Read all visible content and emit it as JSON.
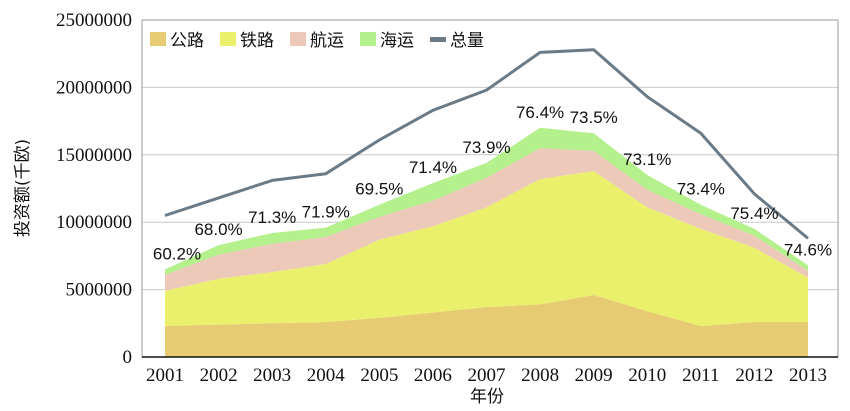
{
  "chart_data": {
    "type": "area",
    "xlabel": "年份",
    "ylabel": "投资额(千欧)",
    "x": [
      "2001",
      "2002",
      "2003",
      "2004",
      "2005",
      "2006",
      "2007",
      "2008",
      "2009",
      "2010",
      "2011",
      "2012",
      "2013"
    ],
    "ylim": [
      0,
      25000000
    ],
    "yticks": [
      "0",
      "5000000",
      "10000000",
      "15000000",
      "20000000",
      "25000000"
    ],
    "grid": true,
    "legend_position": "top-left",
    "stacked_series": [
      {
        "name": "公路",
        "color": "#e6cb72",
        "values": [
          2300000,
          2400000,
          2500000,
          2600000,
          2900000,
          3300000,
          3700000,
          3900000,
          4600000,
          3400000,
          2300000,
          2600000,
          2600000
        ]
      },
      {
        "name": "铁路",
        "color": "#eaf06c",
        "values": [
          2600000,
          3400000,
          3800000,
          4300000,
          5800000,
          6400000,
          7400000,
          9300000,
          9200000,
          7700000,
          7200000,
          5500000,
          3300000
        ]
      },
      {
        "name": "航运",
        "color": "#ecc9b8",
        "values": [
          1200000,
          1800000,
          2100000,
          2000000,
          1700000,
          1900000,
          2200000,
          2300000,
          1500000,
          1300000,
          1100000,
          900000,
          500000
        ]
      },
      {
        "name": "海运",
        "color": "#b4f08c",
        "values": [
          400000,
          700000,
          800000,
          700000,
          900000,
          1300000,
          1100000,
          1500000,
          1300000,
          1100000,
          700000,
          500000,
          400000
        ]
      }
    ],
    "line_series": {
      "name": "总量",
      "color": "#6c7a86",
      "values": [
        10500000,
        11800000,
        13100000,
        13600000,
        16100000,
        18300000,
        19800000,
        22600000,
        22800000,
        19300000,
        16600000,
        12100000,
        8800000
      ]
    },
    "annotations": [
      "60.2%",
      "68.0%",
      "71.3%",
      "71.9%",
      "69.5%",
      "71.4%",
      "73.9%",
      "76.4%",
      "73.5%",
      "73.1%",
      "73.4%",
      "75.4%",
      "74.6%"
    ],
    "legend": [
      "公路",
      "铁路",
      "航运",
      "海运",
      "总量"
    ]
  }
}
